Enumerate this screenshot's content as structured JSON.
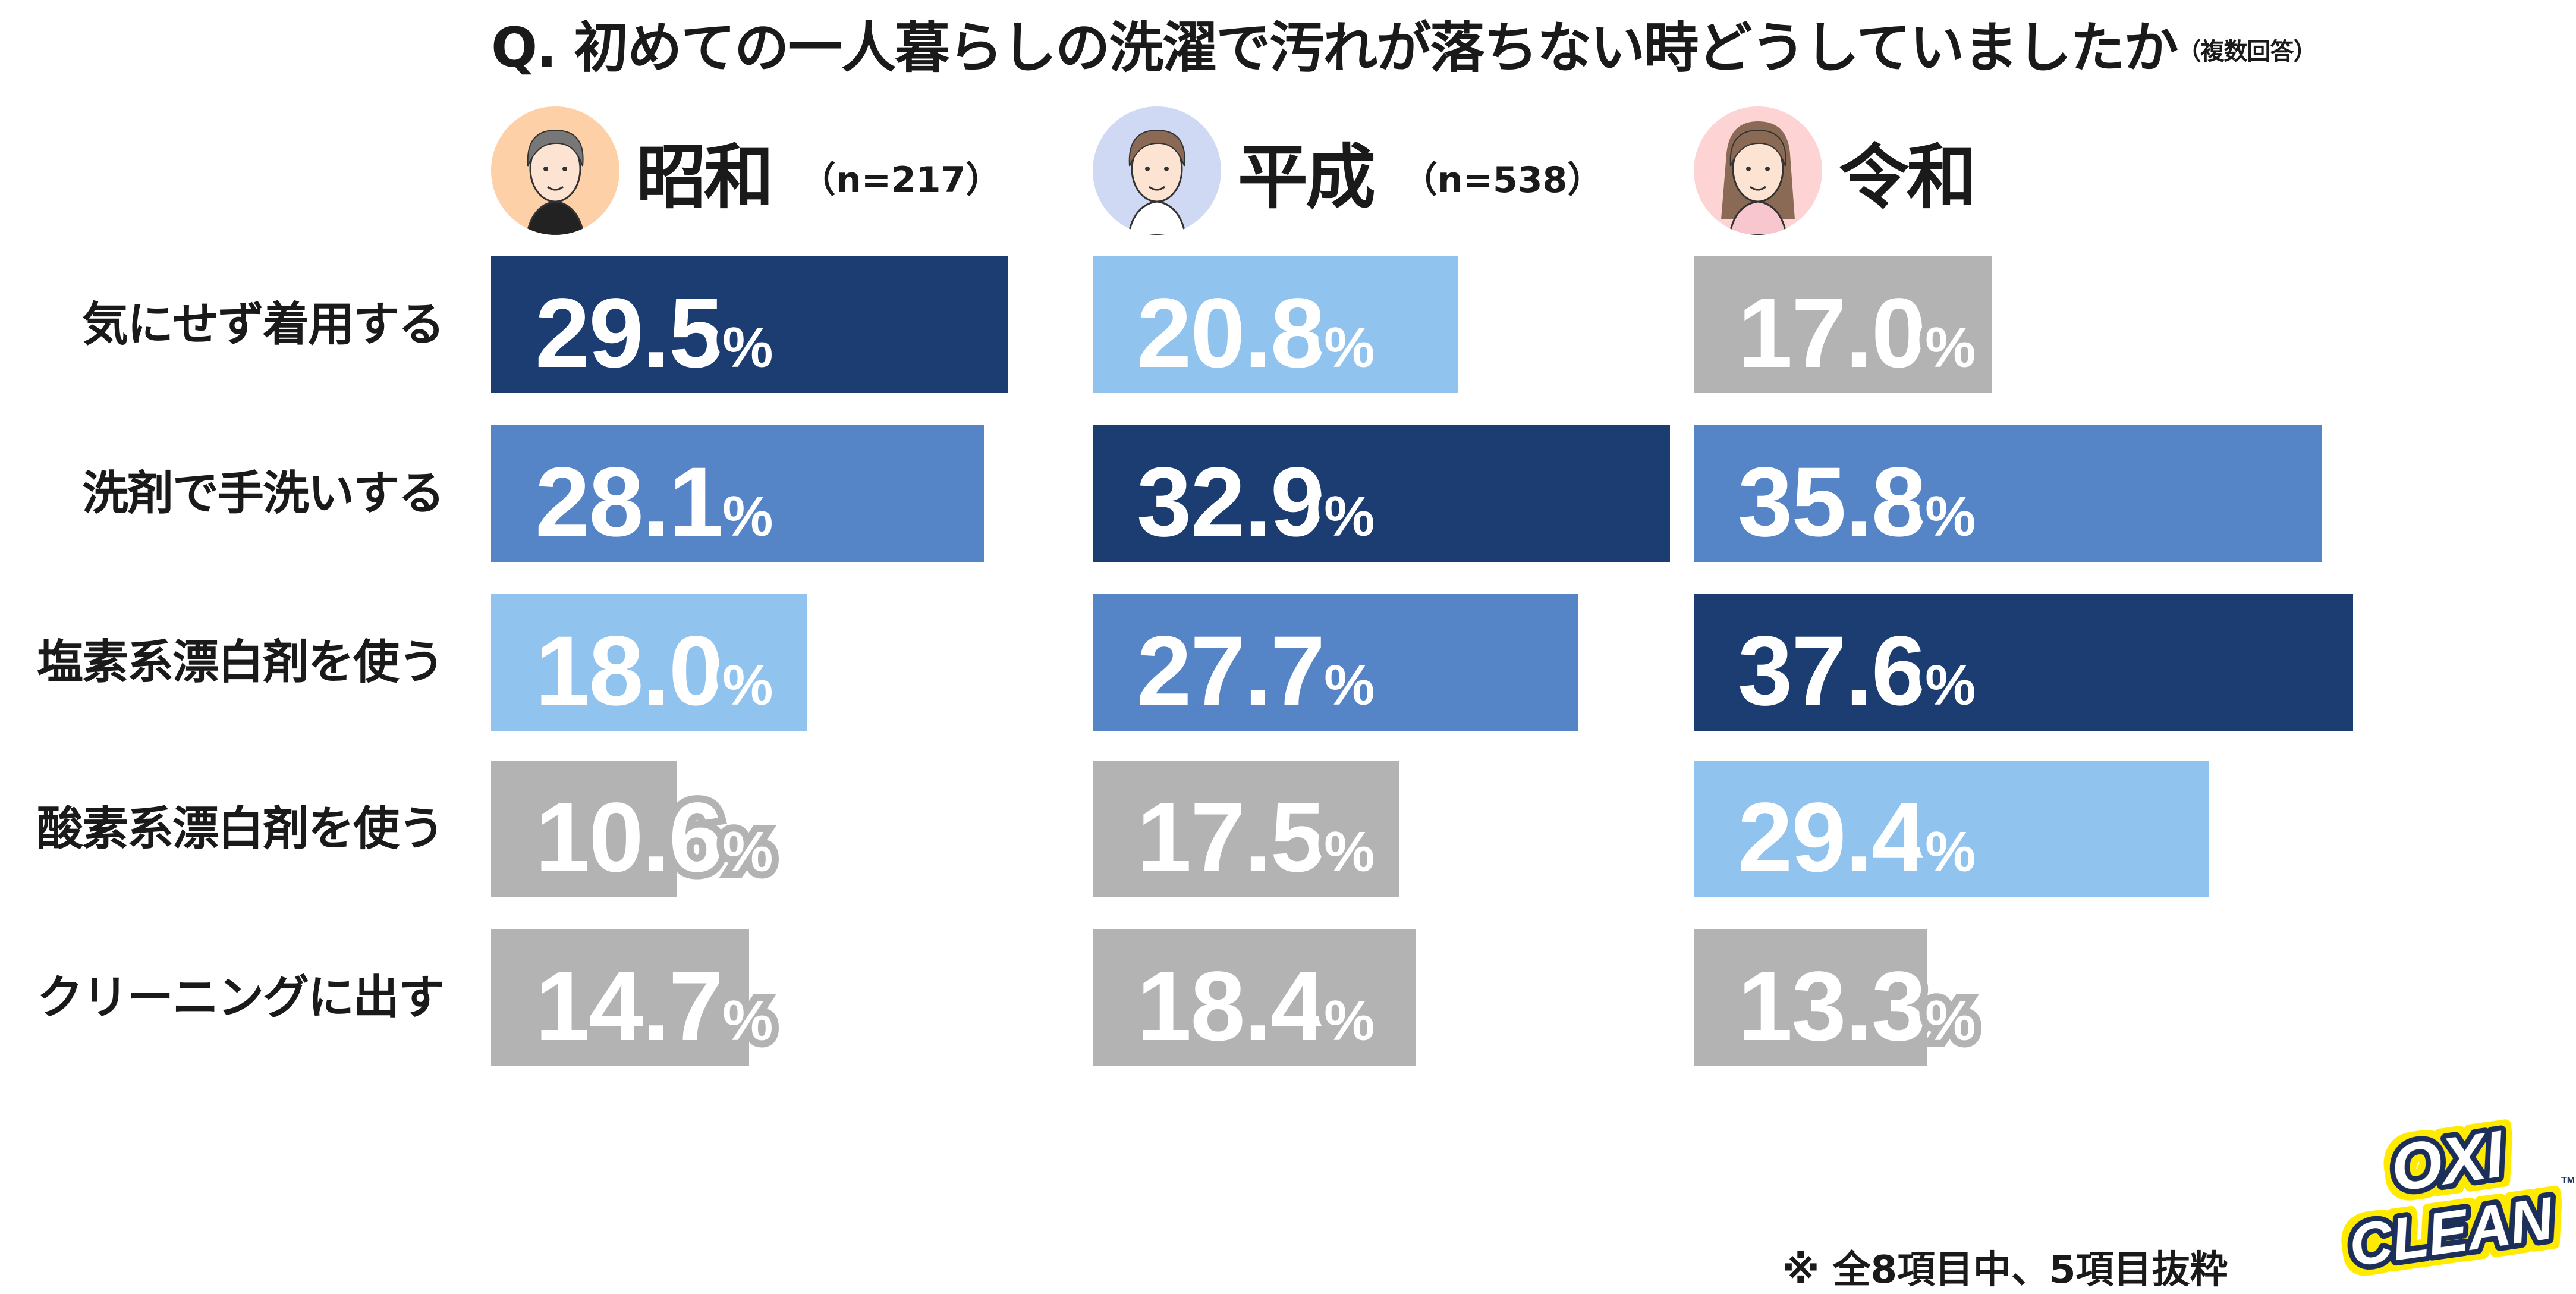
{
  "title": {
    "question": "Q. 初めての一人暮らしの洗濯で汚れが落ちない時どうしていましたか",
    "note": "（複数回答）"
  },
  "footnote": "※ 全8項目中、5項目抜粋",
  "logo": {
    "text_line1": "OXI",
    "text_line2": "CLEAN",
    "tm": "TM"
  },
  "colors": {
    "rank1": "#1b3d72",
    "rank2": "#5585c6",
    "rank3": "#90c3ee",
    "other": "#b3b3b3"
  },
  "groups": [
    {
      "era": "昭和",
      "n": "（n=217）",
      "avatar_bg": "#fdd0a8",
      "avatar": "older-man-avatar"
    },
    {
      "era": "平成",
      "n": "（n=538）",
      "avatar_bg": "#cfd9f3",
      "avatar": "short-hair-person-avatar"
    },
    {
      "era": "令和",
      "n": "",
      "avatar_bg": "#fdd3d3",
      "avatar": "long-hair-woman-avatar"
    }
  ],
  "chart_data": {
    "type": "bar",
    "orientation": "horizontal",
    "categories": [
      "気にせず着用する",
      "洗剤で手洗いする",
      "塩素系漂白剤を使う",
      "酸素系漂白剤を使う",
      "クリーニングに出す"
    ],
    "unit": "%",
    "series": [
      {
        "name": "昭和",
        "values": [
          29.5,
          28.1,
          18.0,
          10.6,
          14.7
        ],
        "labels": [
          "29.5",
          "28.1",
          "18.0",
          "10.6",
          "14.7"
        ],
        "colors": [
          "rank1",
          "rank2",
          "rank3",
          "other",
          "other"
        ]
      },
      {
        "name": "平成",
        "values": [
          20.8,
          32.9,
          27.7,
          17.5,
          18.4
        ],
        "labels": [
          "20.8",
          "32.9",
          "27.7",
          "17.5",
          "18.4"
        ],
        "colors": [
          "rank3",
          "rank1",
          "rank2",
          "other",
          "other"
        ]
      },
      {
        "name": "令和",
        "values": [
          17.0,
          35.8,
          37.6,
          29.4,
          13.3
        ],
        "labels": [
          "17.0",
          "35.8",
          "37.6",
          "29.4",
          "13.3"
        ],
        "colors": [
          "other",
          "rank2",
          "rank1",
          "rank3",
          "other"
        ]
      }
    ],
    "xlim": [
      0,
      40
    ]
  }
}
